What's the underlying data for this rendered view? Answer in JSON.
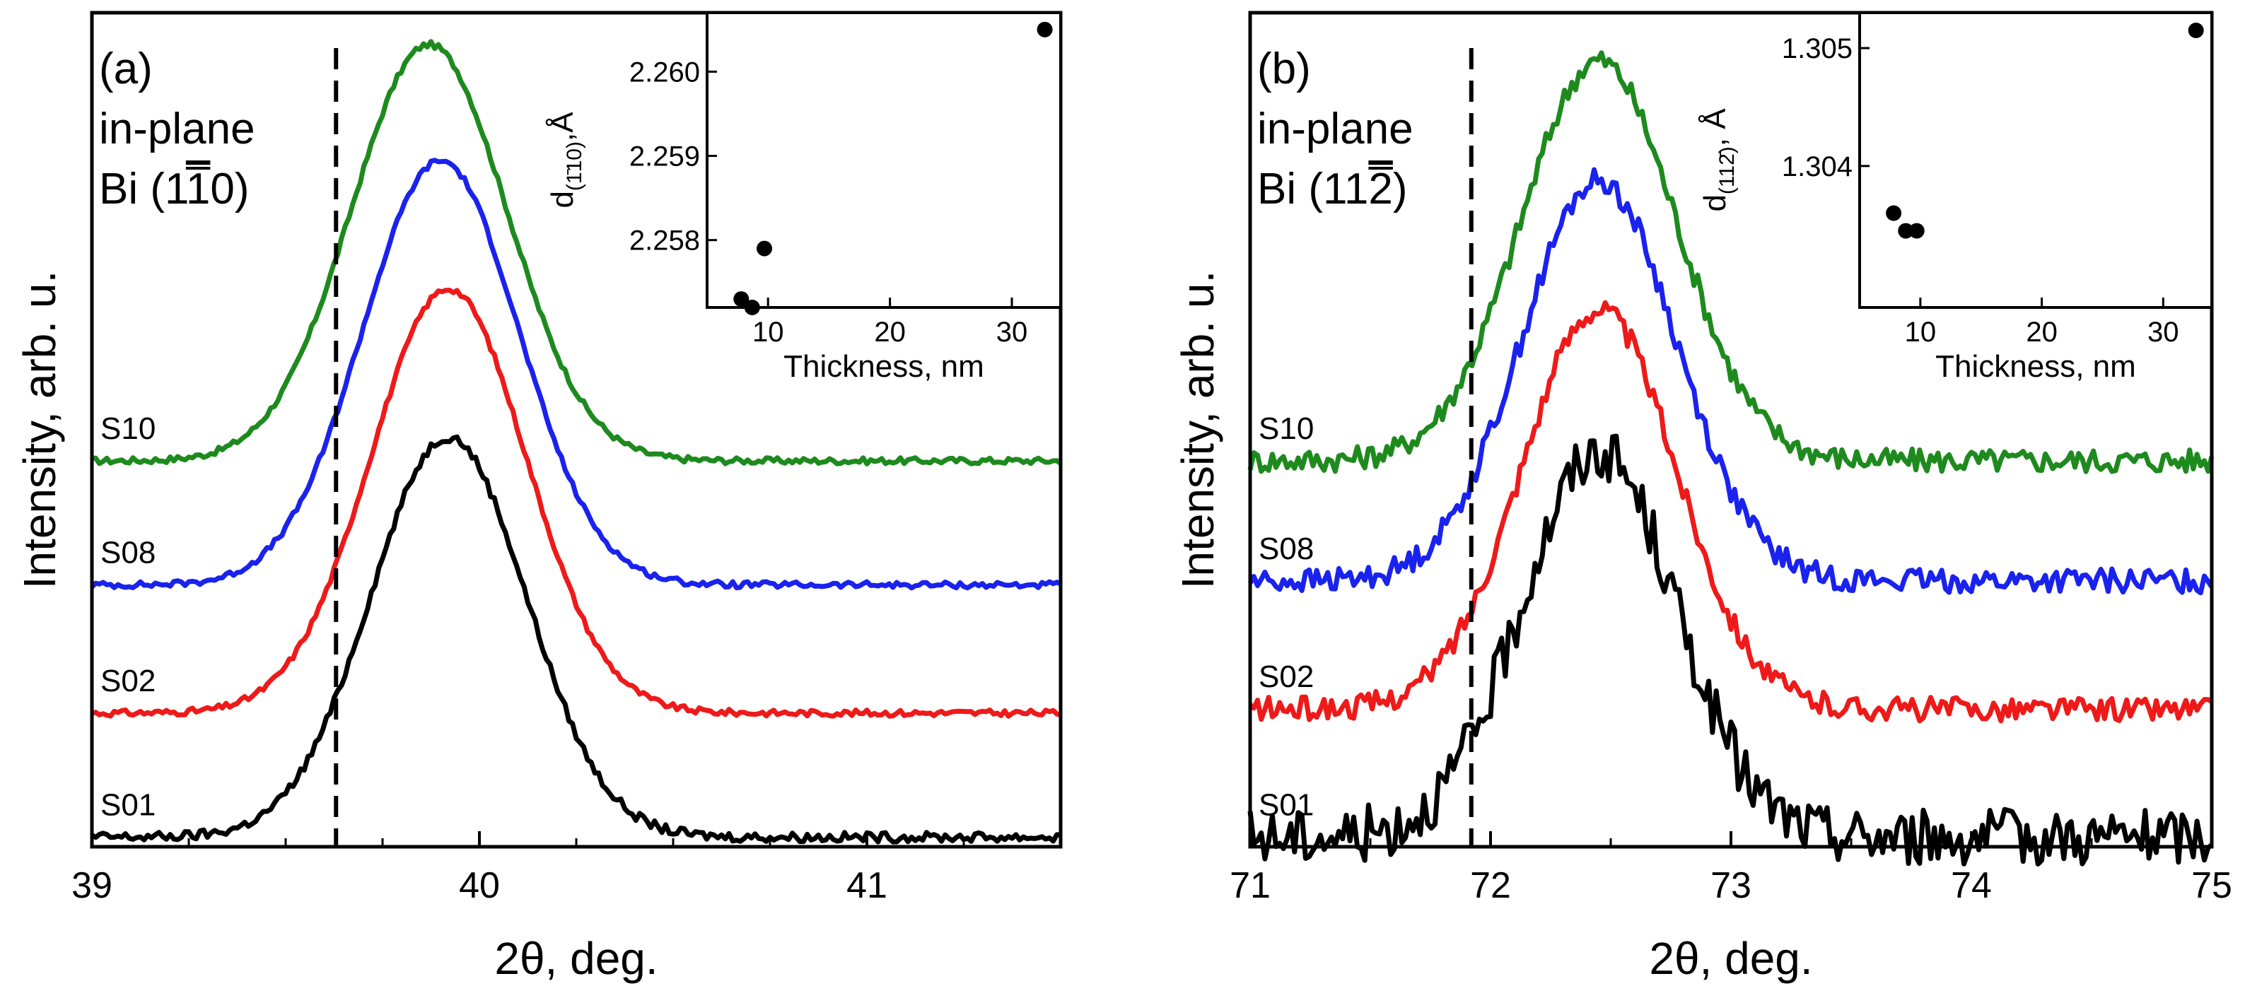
{
  "chart_data": [
    {
      "type": "line",
      "panel": "a",
      "panel_label": "(a)",
      "panel_text": [
        "in-plane",
        "Bi (1",
        "0)"
      ],
      "overbar_digit": "1",
      "xlabel": "2θ, deg.",
      "ylabel": "Intensity, arb. u.",
      "xlim": [
        39.0,
        41.5
      ],
      "ylim": [
        0,
        1
      ],
      "xticks": [
        39,
        40,
        41
      ],
      "grid": false,
      "dashed_reference_x": 39.63,
      "series": [
        {
          "name": "S10",
          "color": "#1e8a1e",
          "offset": 0.47,
          "center": 39.87,
          "sigma": 0.2,
          "amp": 0.52,
          "noise": 0.004
        },
        {
          "name": "S08",
          "color": "#1a22ee",
          "offset": 0.315,
          "center": 39.9,
          "sigma": 0.2,
          "amp": 0.53,
          "noise": 0.004
        },
        {
          "name": "S02",
          "color": "#ee1a1a",
          "offset": 0.155,
          "center": 39.92,
          "sigma": 0.2,
          "amp": 0.53,
          "noise": 0.004
        },
        {
          "name": "S01",
          "color": "#000000",
          "offset": 0.0,
          "center": 39.92,
          "sigma": 0.2,
          "amp": 0.5,
          "noise": 0.006
        }
      ],
      "inset": {
        "type": "scatter",
        "xlabel": "Thickness, nm",
        "ylabel": "d",
        "ylabel_sub": "(1̄10)",
        "ylabel_unit": ",Å",
        "xlim": [
          5,
          34
        ],
        "ylim": [
          2.2572,
          2.2607
        ],
        "xticks": [
          10,
          20,
          30
        ],
        "yticks": [
          "2.258",
          "2.259",
          "2.260"
        ],
        "x": [
          7.8,
          8.7,
          9.7,
          32.7
        ],
        "y": [
          2.2573,
          2.2572,
          2.2579,
          2.2605
        ]
      }
    },
    {
      "type": "line",
      "panel": "b",
      "panel_label": "(b)",
      "panel_text": [
        "in-plane",
        "Bi (11",
        ")"
      ],
      "overbar_digit": "2",
      "xlabel": "2θ, deg.",
      "ylabel": "Intensity, arb. u.",
      "xlim": [
        71.0,
        75.0
      ],
      "ylim": [
        0,
        1
      ],
      "xticks": [
        71,
        72,
        73,
        74,
        75
      ],
      "grid": false,
      "dashed_reference_x": 71.92,
      "series": [
        {
          "name": "S10",
          "color": "#1e8a1e",
          "offset": 0.47,
          "center": 72.45,
          "sigma": 0.32,
          "amp": 0.5,
          "noise": 0.015
        },
        {
          "name": "S08",
          "color": "#1a22ee",
          "offset": 0.32,
          "center": 72.45,
          "sigma": 0.32,
          "amp": 0.5,
          "noise": 0.015
        },
        {
          "name": "S02",
          "color": "#ee1a1a",
          "offset": 0.16,
          "center": 72.45,
          "sigma": 0.32,
          "amp": 0.5,
          "noise": 0.015
        },
        {
          "name": "S01",
          "color": "#000000",
          "offset": 0.0,
          "center": 72.45,
          "sigma": 0.32,
          "amp": 0.48,
          "noise": 0.035
        }
      ],
      "inset": {
        "type": "scatter",
        "xlabel": "Thickness, nm",
        "ylabel": "d",
        "ylabel_sub": "(112̄)",
        "ylabel_unit": ", Å",
        "xlim": [
          5,
          34
        ],
        "ylim": [
          1.3028,
          1.3053
        ],
        "xticks": [
          10,
          20,
          30
        ],
        "yticks": [
          "1.304",
          "1.305"
        ],
        "x": [
          7.8,
          8.8,
          9.7,
          32.7
        ],
        "y": [
          1.3036,
          1.30345,
          1.30345,
          1.30515
        ]
      }
    }
  ]
}
